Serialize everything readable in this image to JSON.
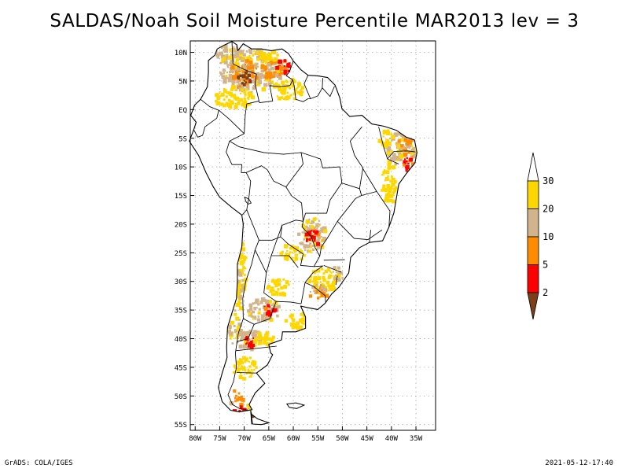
{
  "title": "SALDAS/Noah Soil Moisture Percentile MAR2013 lev = 3",
  "footer": {
    "left": "GrADS: COLA/IGES",
    "right": "2021-05-12-17:40"
  },
  "map_data": {
    "projection": "lat-lon",
    "lon_range": [
      -81,
      -31
    ],
    "lat_range": [
      -56,
      12
    ],
    "grid_lines": true,
    "lat_ticks": [
      {
        "value": 10,
        "label": "10N"
      },
      {
        "value": 5,
        "label": "5N"
      },
      {
        "value": 0,
        "label": "EQ"
      },
      {
        "value": -5,
        "label": "5S"
      },
      {
        "value": -10,
        "label": "10S"
      },
      {
        "value": -15,
        "label": "15S"
      },
      {
        "value": -20,
        "label": "20S"
      },
      {
        "value": -25,
        "label": "25S"
      },
      {
        "value": -30,
        "label": "30S"
      },
      {
        "value": -35,
        "label": "35S"
      },
      {
        "value": -40,
        "label": "40S"
      },
      {
        "value": -45,
        "label": "45S"
      },
      {
        "value": -50,
        "label": "50S"
      },
      {
        "value": -55,
        "label": "55S"
      }
    ],
    "lon_ticks": [
      {
        "value": -80,
        "label": "80W"
      },
      {
        "value": -75,
        "label": "75W"
      },
      {
        "value": -70,
        "label": "70W"
      },
      {
        "value": -65,
        "label": "65W"
      },
      {
        "value": -60,
        "label": "60W"
      },
      {
        "value": -55,
        "label": "55W"
      },
      {
        "value": -50,
        "label": "50W"
      },
      {
        "value": -45,
        "label": "45W"
      },
      {
        "value": -40,
        "label": "40W"
      },
      {
        "value": -35,
        "label": "35W"
      }
    ],
    "legend": {
      "placement": "right",
      "bins": [
        {
          "color": "#7b3f1a"
        },
        {
          "color": "#ff0000"
        },
        {
          "color": "#ff8c00"
        },
        {
          "color": "#d2b48c"
        },
        {
          "color": "#ffd700"
        },
        {
          "color": "#ffffff"
        }
      ],
      "labels": [
        "2",
        "5",
        "10",
        "20",
        "30"
      ]
    },
    "dry_regions": [
      {
        "lon": -69,
        "lat": 7,
        "rlon": 6,
        "rlat": 4,
        "cat": 3
      },
      {
        "lon": -70,
        "lat": 6,
        "rlon": 3,
        "rlat": 2.5,
        "cat": 2
      },
      {
        "lon": -70,
        "lat": 5.5,
        "rlon": 1.5,
        "rlat": 1.2,
        "cat": 0
      },
      {
        "lon": -64,
        "lat": 7,
        "rlon": 2.5,
        "rlat": 1.8,
        "cat": 2
      },
      {
        "lon": -62,
        "lat": 7.5,
        "rlon": 1.5,
        "rlat": 1.3,
        "cat": 1
      },
      {
        "lon": -73,
        "lat": 10,
        "rlon": 3,
        "rlat": 1.6,
        "cat": 3
      },
      {
        "lon": -66,
        "lat": 9.5,
        "rlon": 3,
        "rlat": 1.3,
        "cat": 4
      },
      {
        "lon": -72,
        "lat": 2,
        "rlon": 4,
        "rlat": 2,
        "cat": 4
      },
      {
        "lon": -61,
        "lat": 3.5,
        "rlon": 3,
        "rlat": 2,
        "cat": 4
      },
      {
        "lon": -38,
        "lat": -7,
        "rlon": 3,
        "rlat": 3,
        "cat": 3
      },
      {
        "lon": -37,
        "lat": -6,
        "rlon": 1.5,
        "rlat": 2,
        "cat": 2
      },
      {
        "lon": -36.5,
        "lat": -9,
        "rlon": 1,
        "rlat": 2,
        "cat": 1
      },
      {
        "lon": -40.5,
        "lat": -13,
        "rlon": 1.5,
        "rlat": 4,
        "cat": 4
      },
      {
        "lon": -41,
        "lat": -5,
        "rlon": 1.5,
        "rlat": 1.5,
        "cat": 4
      },
      {
        "lon": -56,
        "lat": -22,
        "rlon": 3,
        "rlat": 3,
        "cat": 3
      },
      {
        "lon": -56,
        "lat": -22.5,
        "rlon": 1.5,
        "rlat": 1.5,
        "cat": 1
      },
      {
        "lon": -60,
        "lat": -25,
        "rlon": 2.5,
        "rlat": 1.5,
        "cat": 4
      },
      {
        "lon": -54,
        "lat": -30,
        "rlon": 3,
        "rlat": 2.5,
        "cat": 4
      },
      {
        "lon": -55,
        "lat": -32,
        "rlon": 2,
        "rlat": 1.5,
        "cat": 2
      },
      {
        "lon": -51,
        "lat": -29,
        "rlon": 1.5,
        "rlat": 1.5,
        "cat": 3
      },
      {
        "lon": -71,
        "lat": -29,
        "rlon": 1.6,
        "rlat": 6,
        "cat": 4
      },
      {
        "lon": -71,
        "lat": -31,
        "rlon": 0.9,
        "rlat": 3,
        "cat": 3
      },
      {
        "lon": -66,
        "lat": -35,
        "rlon": 3.5,
        "rlat": 2,
        "cat": 3
      },
      {
        "lon": -65,
        "lat": -35,
        "rlon": 1.5,
        "rlat": 1,
        "cat": 1
      },
      {
        "lon": -63,
        "lat": -31,
        "rlon": 2.5,
        "rlat": 1.5,
        "cat": 4
      },
      {
        "lon": -59,
        "lat": -37,
        "rlon": 2.5,
        "rlat": 1.5,
        "cat": 4
      },
      {
        "lon": -72,
        "lat": -38,
        "rlon": 1.2,
        "rlat": 3,
        "cat": 3
      },
      {
        "lon": -69,
        "lat": -40,
        "rlon": 2.5,
        "rlat": 2,
        "cat": 3
      },
      {
        "lon": -69,
        "lat": -40.5,
        "rlon": 1.3,
        "rlat": 1,
        "cat": 1
      },
      {
        "lon": -66,
        "lat": -40,
        "rlon": 2,
        "rlat": 1.5,
        "cat": 4
      },
      {
        "lon": -70,
        "lat": -45,
        "rlon": 2.5,
        "rlat": 2,
        "cat": 4
      },
      {
        "lon": -71.5,
        "lat": -50.5,
        "rlon": 1.5,
        "rlat": 1.5,
        "cat": 2
      },
      {
        "lon": -70,
        "lat": -53,
        "rlon": 2.5,
        "rlat": 1.2,
        "cat": 1
      },
      {
        "lon": -69,
        "lat": -53.5,
        "rlon": 1,
        "rlat": 0.8,
        "cat": 0
      },
      {
        "lon": -68,
        "lat": -52,
        "rlon": 1.5,
        "rlat": 1,
        "cat": 4
      }
    ]
  }
}
